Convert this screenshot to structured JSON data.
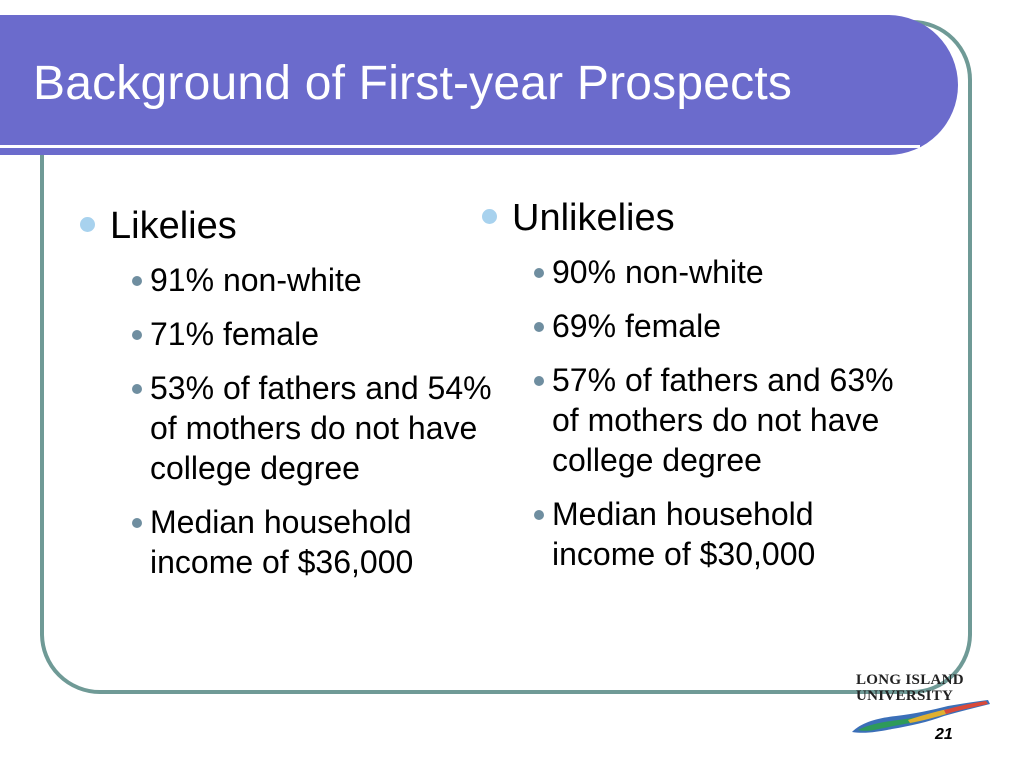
{
  "slide": {
    "title": "Background of First-year Prospects",
    "page_number": "21"
  },
  "left_column": {
    "heading": "Likelies",
    "items": [
      "91% non-white",
      "71% female",
      "53% of fathers and 54% of mothers do not have college degree",
      "Median household income of $36,000"
    ]
  },
  "right_column": {
    "heading": "Unlikelies",
    "items": [
      "90% non-white",
      "69% female",
      "57% of fathers and 63% of mothers do not have college degree",
      "Median household income of $30,000"
    ]
  },
  "logo": {
    "line1": "LONG ISLAND",
    "line2": "UNIVERSITY"
  },
  "colors": {
    "title_bar": "#6b6bcc",
    "frame": "#6f9a96",
    "level1_bullet": "#a8d2ee",
    "level2_bullet": "#6f8ea0"
  }
}
